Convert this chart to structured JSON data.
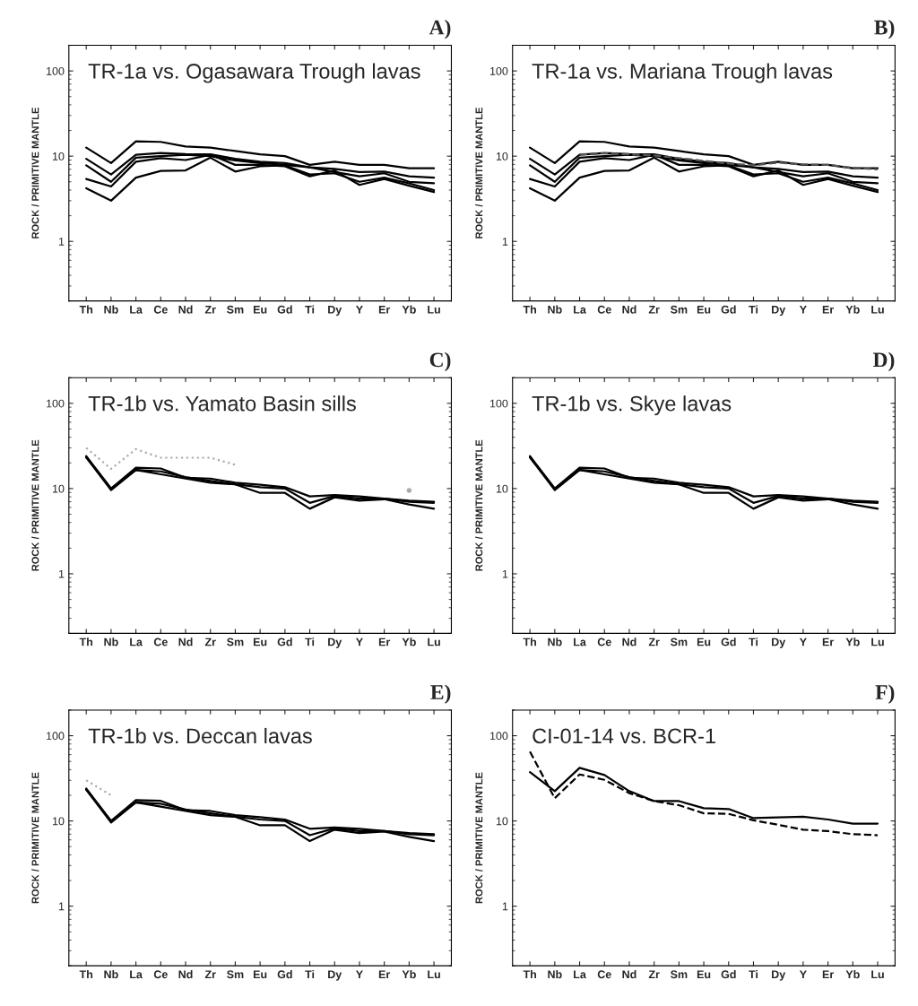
{
  "chart_data": [
    {
      "type": "line",
      "title": "TR-1a vs. Ogasawara Trough lavas",
      "annotations": [
        "A)"
      ],
      "ylabel": "ROCK / PRIMITIVE MANTLE",
      "log": "y",
      "grid": false,
      "ylim": [
        0.2,
        200
      ],
      "yticks": [
        1,
        10,
        100
      ],
      "categories": [
        "Th",
        "Nb",
        "La",
        "Ce",
        "Nd",
        "Zr",
        "Sm",
        "Eu",
        "Gd",
        "Ti",
        "Dy",
        "Y",
        "Er",
        "Yb",
        "Lu"
      ],
      "series": [
        {
          "color": "#000000",
          "line_style": "solid",
          "values": [
            12.6,
            8.3,
            14.9,
            14.7,
            13,
            12.6,
            11.5,
            10.5,
            10,
            7.9,
            8.6,
            7.9,
            7.9,
            7.2,
            7.2
          ]
        },
        {
          "color": "#000000",
          "line_style": "solid",
          "values": [
            9.3,
            6.1,
            10.4,
            10.9,
            10.6,
            10.5,
            9.3,
            8.6,
            8.3,
            7.4,
            7.1,
            6.5,
            6.6,
            5.8,
            5.6
          ]
        },
        {
          "color": "#000000",
          "line_style": "solid",
          "values": [
            7.8,
            5.0,
            9.6,
            10,
            10.4,
            10,
            8.9,
            8.3,
            7.9,
            7.4,
            6.5,
            5.8,
            6.3,
            5.0,
            4.8
          ]
        },
        {
          "color": "#000000",
          "line_style": "solid",
          "values": [
            5.4,
            4.4,
            8.6,
            9.5,
            9.0,
            10.4,
            7.9,
            7.9,
            7.6,
            5.8,
            6.8,
            4.6,
            5.4,
            4.5,
            3.8
          ]
        },
        {
          "color": "#000000",
          "line_style": "solid",
          "values": [
            4.2,
            3.0,
            5.6,
            6.7,
            6.8,
            9.6,
            6.6,
            7.6,
            7.8,
            6.1,
            6.3,
            5.0,
            5.6,
            4.8,
            4.0
          ]
        }
      ]
    },
    {
      "type": "line",
      "title": "TR-1a vs. Mariana Trough lavas",
      "annotations": [
        "B)"
      ],
      "ylabel": "ROCK / PRIMITIVE MANTLE",
      "log": "y",
      "grid": false,
      "ylim": [
        0.2,
        200
      ],
      "yticks": [
        1,
        10,
        100
      ],
      "categories": [
        "Th",
        "Nb",
        "La",
        "Ce",
        "Nd",
        "Zr",
        "Sm",
        "Eu",
        "Gd",
        "Ti",
        "Dy",
        "Y",
        "Er",
        "Yb",
        "Lu"
      ],
      "series": [
        {
          "color": "#000000",
          "line_style": "solid",
          "values": [
            12.6,
            8.3,
            14.9,
            14.7,
            13,
            12.6,
            11.5,
            10.5,
            10,
            7.9,
            8.6,
            7.9,
            7.9,
            7.2,
            7.2
          ]
        },
        {
          "color": "#000000",
          "line_style": "solid",
          "values": [
            9.3,
            6.1,
            10.4,
            10.9,
            10.6,
            10.5,
            9.3,
            8.6,
            8.3,
            7.4,
            7.1,
            6.5,
            6.6,
            5.8,
            5.6
          ]
        },
        {
          "color": "#000000",
          "line_style": "solid",
          "values": [
            7.8,
            5.0,
            9.6,
            10,
            10.4,
            10,
            8.9,
            8.3,
            7.9,
            7.4,
            6.5,
            5.8,
            6.3,
            5.0,
            4.8
          ]
        },
        {
          "color": "#000000",
          "line_style": "solid",
          "values": [
            5.4,
            4.4,
            8.6,
            9.5,
            9.0,
            10.4,
            7.9,
            7.9,
            7.6,
            5.8,
            6.8,
            4.6,
            5.4,
            4.5,
            3.8
          ]
        },
        {
          "color": "#000000",
          "line_style": "solid",
          "values": [
            4.2,
            3.0,
            5.6,
            6.7,
            6.8,
            9.6,
            6.6,
            7.6,
            7.8,
            6.1,
            6.3,
            5.0,
            5.6,
            4.8,
            4.0
          ]
        },
        {
          "color": "#555555",
          "line_style": "dashed",
          "values": [
            null,
            null,
            10.5,
            10.8,
            10.5,
            10.2,
            9.5,
            8.8,
            8.2,
            7.8,
            8.4,
            8.0,
            7.9,
            7.3,
            7.0
          ]
        }
      ]
    },
    {
      "type": "line",
      "title": "TR-1b vs. Yamato Basin sills",
      "annotations": [
        "C)"
      ],
      "ylabel": "ROCK / PRIMITIVE MANTLE",
      "log": "y",
      "grid": false,
      "ylim": [
        0.2,
        200
      ],
      "yticks": [
        1,
        10,
        100
      ],
      "categories": [
        "Th",
        "Nb",
        "La",
        "Ce",
        "Nd",
        "Zr",
        "Sm",
        "Eu",
        "Gd",
        "Ti",
        "Dy",
        "Y",
        "Er",
        "Yb",
        "Lu"
      ],
      "series": [
        {
          "color": "#000000",
          "line_style": "solid",
          "values": [
            24,
            10,
            17.6,
            17.2,
            13.4,
            13.1,
            11.7,
            11.1,
            10.4,
            8.1,
            8.4,
            8.1,
            7.6,
            7.2,
            7.0
          ]
        },
        {
          "color": "#000000",
          "line_style": "solid",
          "values": [
            23.3,
            9.6,
            16.5,
            14.7,
            13.1,
            11.7,
            11.2,
            8.9,
            8.9,
            5.8,
            7.9,
            7.2,
            7.5,
            6.5,
            5.8
          ]
        },
        {
          "color": "#000000",
          "line_style": "solid",
          "values": [
            23.3,
            10,
            16.5,
            15.9,
            13.6,
            12.3,
            11.2,
            10.4,
            10,
            6.8,
            8.2,
            7.6,
            7.6,
            7.0,
            6.8
          ]
        },
        {
          "color": "#aaaaaa",
          "line_style": "dotted",
          "values": [
            30,
            17,
            29,
            23,
            23,
            23,
            19,
            null,
            null,
            null,
            null,
            null,
            null,
            9.5,
            null
          ]
        }
      ]
    },
    {
      "type": "line",
      "title": "TR-1b vs. Skye lavas",
      "annotations": [
        "D)"
      ],
      "ylabel": "ROCK / PRIMITIVE MANTLE",
      "log": "y",
      "grid": false,
      "ylim": [
        0.2,
        200
      ],
      "yticks": [
        1,
        10,
        100
      ],
      "categories": [
        "Th",
        "Nb",
        "La",
        "Ce",
        "Nd",
        "Zr",
        "Sm",
        "Eu",
        "Gd",
        "Ti",
        "Dy",
        "Y",
        "Er",
        "Yb",
        "Lu"
      ],
      "series": [
        {
          "color": "#000000",
          "line_style": "solid",
          "values": [
            24,
            10,
            17.6,
            17.2,
            13.4,
            13.1,
            11.7,
            11.1,
            10.4,
            8.1,
            8.4,
            8.1,
            7.6,
            7.2,
            7.0
          ]
        },
        {
          "color": "#000000",
          "line_style": "solid",
          "values": [
            23.3,
            9.6,
            16.5,
            14.7,
            13.1,
            11.7,
            11.2,
            8.9,
            8.9,
            5.8,
            7.9,
            7.2,
            7.5,
            6.5,
            5.8
          ]
        },
        {
          "color": "#000000",
          "line_style": "solid",
          "values": [
            23.3,
            10,
            16.5,
            15.9,
            13.6,
            12.3,
            11.2,
            10.4,
            10,
            6.8,
            8.2,
            7.6,
            7.6,
            7.0,
            6.8
          ]
        }
      ]
    },
    {
      "type": "line",
      "title": "TR-1b vs. Deccan lavas",
      "annotations": [
        "E)"
      ],
      "ylabel": "ROCK / PRIMITIVE MANTLE",
      "log": "y",
      "grid": false,
      "ylim": [
        0.2,
        200
      ],
      "yticks": [
        1,
        10,
        100
      ],
      "categories": [
        "Th",
        "Nb",
        "La",
        "Ce",
        "Nd",
        "Zr",
        "Sm",
        "Eu",
        "Gd",
        "Ti",
        "Dy",
        "Y",
        "Er",
        "Yb",
        "Lu"
      ],
      "series": [
        {
          "color": "#000000",
          "line_style": "solid",
          "values": [
            24,
            10,
            17.6,
            17.2,
            13.4,
            13.1,
            11.7,
            11.1,
            10.4,
            8.1,
            8.4,
            8.1,
            7.6,
            7.2,
            7.0
          ]
        },
        {
          "color": "#000000",
          "line_style": "solid",
          "values": [
            23.3,
            9.6,
            16.5,
            14.7,
            13.1,
            11.7,
            11.2,
            8.9,
            8.9,
            5.8,
            7.9,
            7.2,
            7.5,
            6.5,
            5.8
          ]
        },
        {
          "color": "#000000",
          "line_style": "solid",
          "values": [
            23.3,
            10,
            16.5,
            15.9,
            13.6,
            12.3,
            11.2,
            10.4,
            10,
            6.8,
            8.2,
            7.6,
            7.6,
            7.0,
            6.8
          ]
        },
        {
          "color": "#aaaaaa",
          "line_style": "dotted",
          "values": [
            30,
            20,
            null,
            null,
            null,
            null,
            null,
            null,
            null,
            null,
            null,
            null,
            null,
            null,
            null
          ]
        }
      ]
    },
    {
      "type": "line",
      "title": "CI-01-14 vs. BCR-1",
      "annotations": [
        "F)"
      ],
      "ylabel": "ROCK / PRIMITIVE MANTLE",
      "log": "y",
      "grid": false,
      "ylim": [
        0.2,
        200
      ],
      "yticks": [
        1,
        10,
        100
      ],
      "categories": [
        "Th",
        "Nb",
        "La",
        "Ce",
        "Nd",
        "Zr",
        "Sm",
        "Eu",
        "Gd",
        "Ti",
        "Dy",
        "Y",
        "Er",
        "Yb",
        "Lu"
      ],
      "series": [
        {
          "color": "#000000",
          "line_style": "solid",
          "values": [
            37.4,
            22.4,
            42,
            34.6,
            22.4,
            17.1,
            17.1,
            14.1,
            13.8,
            10.8,
            11.0,
            11.2,
            10.4,
            9.3,
            9.3
          ]
        },
        {
          "color": "#000000",
          "line_style": "dashed",
          "values": [
            65,
            18.5,
            35.1,
            30.4,
            21.2,
            17.1,
            15.3,
            12.3,
            12.1,
            10.2,
            9.0,
            7.9,
            7.6,
            7.0,
            6.8
          ]
        }
      ]
    }
  ]
}
